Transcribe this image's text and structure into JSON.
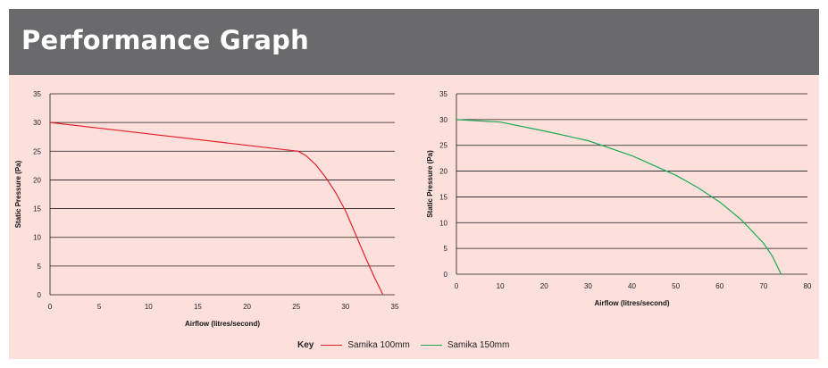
{
  "header": {
    "title": "Performance Graph"
  },
  "key": {
    "title": "Key",
    "items": [
      {
        "label": "Samika 100mm",
        "color": "#e32129"
      },
      {
        "label": "Samika 150mm",
        "color": "#1ea850"
      }
    ]
  },
  "chart_data": [
    {
      "type": "line",
      "xlabel": "Airflow (litres/second)",
      "ylabel": "Static Pressure (Pa)",
      "xlim": [
        0,
        35
      ],
      "ylim": [
        0,
        35
      ],
      "xticks": [
        0,
        5,
        10,
        15,
        20,
        25,
        30,
        35
      ],
      "yticks": [
        0,
        5,
        10,
        15,
        20,
        25,
        30,
        35
      ],
      "grid": "horizontal",
      "series": [
        {
          "name": "Samika 100mm",
          "color": "#e32129",
          "x": [
            0,
            25.2,
            26,
            27,
            28,
            29,
            30,
            31,
            32,
            33,
            33.8
          ],
          "y": [
            30,
            25,
            24.2,
            22.6,
            20.4,
            17.8,
            14.6,
            10.6,
            6.6,
            2.8,
            0
          ]
        }
      ]
    },
    {
      "type": "line",
      "xlabel": "Airflow (litres/second)",
      "ylabel": "Static Pressure (Pa)",
      "xlim": [
        0,
        80
      ],
      "ylim": [
        0,
        35
      ],
      "xticks": [
        0,
        10,
        20,
        30,
        40,
        50,
        60,
        70,
        80
      ],
      "yticks": [
        0,
        5,
        10,
        15,
        20,
        25,
        30,
        35
      ],
      "grid": "horizontal",
      "series": [
        {
          "name": "Samika 150mm",
          "color": "#1ea850",
          "x": [
            0,
            10,
            20,
            30,
            40,
            50,
            55,
            60,
            65,
            70,
            72,
            74
          ],
          "y": [
            30,
            29.5,
            27.8,
            25.9,
            23,
            19.2,
            16.8,
            14,
            10.5,
            6,
            3.5,
            0
          ]
        }
      ]
    }
  ]
}
